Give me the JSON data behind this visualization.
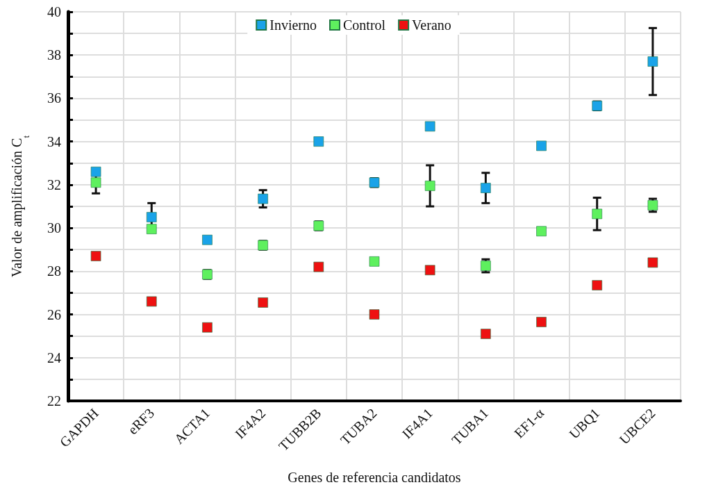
{
  "chart_data": {
    "type": "scatter",
    "xlabel": "Genes de referencia candidatos",
    "ylabel": "Valor de amplificación C$_{t}$",
    "categories": [
      "GAPDH",
      "eRF3",
      "ACTA1",
      "IF4A2",
      "TUBB2B",
      "TUBA2",
      "IF4A1",
      "TUBA1",
      "EF1-α",
      "UBQ1",
      "UBCE2"
    ],
    "series": [
      {
        "name": "Invierno",
        "color": "#1aa3e8",
        "values": [
          32.6,
          30.5,
          29.45,
          31.35,
          34.0,
          32.1,
          34.7,
          31.85,
          33.8,
          35.65,
          37.7
        ],
        "errors": [
          null,
          0.65,
          null,
          0.4,
          null,
          0.2,
          null,
          0.7,
          null,
          0.2,
          1.55
        ]
      },
      {
        "name": "Control",
        "color": "#5ef05e",
        "values": [
          32.1,
          29.95,
          27.85,
          29.2,
          30.1,
          28.45,
          31.95,
          28.25,
          29.85,
          30.65,
          31.05
        ],
        "errors": [
          0.5,
          null,
          0.2,
          0.2,
          0.2,
          null,
          0.95,
          0.3,
          null,
          0.75,
          0.3
        ]
      },
      {
        "name": "Verano",
        "color": "#ee1111",
        "values": [
          28.7,
          26.6,
          25.4,
          26.55,
          28.2,
          26.0,
          28.05,
          25.1,
          25.65,
          27.35,
          28.4
        ]
      }
    ],
    "ylim": [
      22,
      40
    ],
    "yticks": [
      22,
      {
        "value": 23,
        "label": null
      },
      24,
      {
        "value": 25,
        "label": null
      },
      26,
      {
        "value": 27,
        "label": null
      },
      28,
      {
        "value": 29,
        "label": null
      },
      30,
      {
        "value": 31,
        "label": null
      },
      32,
      {
        "value": 33,
        "label": null
      },
      34,
      {
        "value": 35,
        "label": null
      },
      36,
      {
        "value": 37,
        "label": null
      },
      38,
      {
        "value": 39,
        "label": null
      },
      40
    ],
    "grid": true,
    "legend": "top",
    "marker": "square"
  }
}
